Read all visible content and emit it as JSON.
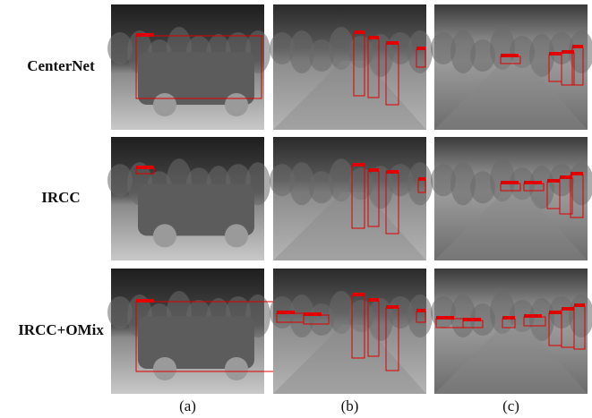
{
  "row_labels": [
    "CenterNet",
    "IRCC",
    "IRCC+OMix"
  ],
  "column_labels": [
    "(a)",
    "(b)",
    "(c)"
  ]
}
